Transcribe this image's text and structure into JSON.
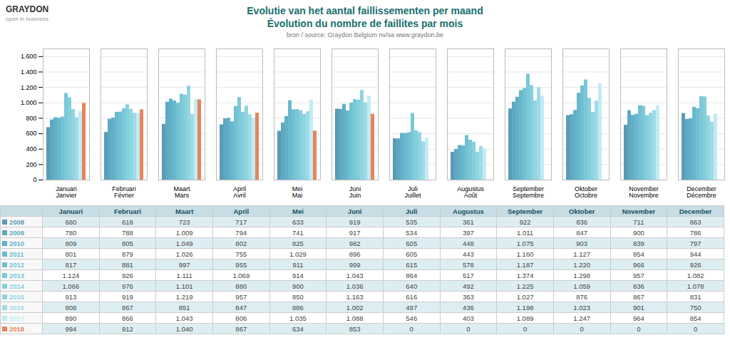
{
  "chart_data": {
    "type": "bar",
    "title": "Evolutie van het aantal faillissementen per maand\nÉvolution du nombre de faillites par mois",
    "subtitle": "bron / source: Graydon Belgium nv/sa   www.graydon.be",
    "annotations": [
      "GRAYDON",
      "open in business"
    ],
    "categories": [
      "Januari\nJanvier",
      "Februari\nFévrier",
      "Maart\nMars",
      "April\nAvril",
      "Mei\nMai",
      "Juni\nJuin",
      "Juli\nJuillet",
      "Augustus\nAoût",
      "September\nSeptembre",
      "Oktober\nOctobre",
      "November\nNovembre",
      "December\nDécembre"
    ],
    "series": [
      {
        "name": "2008",
        "color": "#5b9bb5",
        "values": [
          680,
          618,
          723,
          717,
          633,
          919,
          535,
          361,
          922,
          836,
          711,
          863
        ],
        "value_labels": [
          "680",
          "618",
          "723",
          "717",
          "633",
          "919",
          "535",
          "361",
          "922",
          "836",
          "711",
          "863"
        ]
      },
      {
        "name": "2009",
        "color": "#5ea8c0",
        "values": [
          780,
          788,
          1009,
          794,
          741,
          917,
          534,
          397,
          1011,
          847,
          900,
          786
        ],
        "value_labels": [
          "780",
          "788",
          "1.009",
          "794",
          "741",
          "917",
          "534",
          "397",
          "1.011",
          "847",
          "900",
          "786"
        ]
      },
      {
        "name": "2010",
        "color": "#62b0c8",
        "values": [
          809,
          805,
          1049,
          802,
          825,
          982,
          605,
          448,
          1075,
          903,
          839,
          797
        ],
        "value_labels": [
          "809",
          "805",
          "1.049",
          "802",
          "825",
          "982",
          "605",
          "448",
          "1.075",
          "903",
          "839",
          "797"
        ]
      },
      {
        "name": "2011",
        "color": "#68b8ce",
        "values": [
          801,
          879,
          1026,
          755,
          1029,
          896,
          605,
          443,
          1160,
          1127,
          854,
          944
        ],
        "value_labels": [
          "801",
          "879",
          "1.026",
          "755",
          "1.029",
          "896",
          "605",
          "443",
          "1.160",
          "1.127",
          "854",
          "944"
        ]
      },
      {
        "name": "2012",
        "color": "#72c0d2",
        "values": [
          817,
          881,
          997,
          955,
          911,
          999,
          615,
          578,
          1187,
          1220,
          966,
          926
        ],
        "value_labels": [
          "817",
          "881",
          "997",
          "955",
          "911",
          "999",
          "615",
          "578",
          "1.187",
          "1.220",
          "966",
          "926"
        ]
      },
      {
        "name": "2013",
        "color": "#7ac8d8",
        "values": [
          1124,
          926,
          1111,
          1069,
          914,
          1043,
          864,
          517,
          1374,
          1298,
          957,
          1082
        ],
        "value_labels": [
          "1.124",
          "926",
          "1.111",
          "1.069",
          "914",
          "1.043",
          "864",
          "517",
          "1.374",
          "1.298",
          "957",
          "1.082"
        ]
      },
      {
        "name": "2014",
        "color": "#84cfdc",
        "values": [
          1066,
          976,
          1101,
          880,
          900,
          1036,
          640,
          492,
          1225,
          1059,
          836,
          1078
        ],
        "value_labels": [
          "1.066",
          "976",
          "1.101",
          "880",
          "900",
          "1.036",
          "640",
          "492",
          "1.225",
          "1.059",
          "836",
          "1.078"
        ]
      },
      {
        "name": "2015",
        "color": "#90d5e0",
        "values": [
          913,
          919,
          1219,
          957,
          850,
          1163,
          616,
          363,
          1027,
          876,
          867,
          831
        ],
        "value_labels": [
          "913",
          "919",
          "1.219",
          "957",
          "850",
          "1.163",
          "616",
          "363",
          "1.027",
          "876",
          "867",
          "831"
        ]
      },
      {
        "name": "2016",
        "color": "#9edbe6",
        "values": [
          808,
          867,
          851,
          847,
          886,
          1002,
          497,
          436,
          1198,
          1023,
          901,
          750
        ],
        "value_labels": [
          "808",
          "867",
          "851",
          "847",
          "886",
          "1.002",
          "497",
          "436",
          "1.198",
          "1.023",
          "901",
          "750"
        ]
      },
      {
        "name": "2017",
        "color": "#c0ecf4",
        "values": [
          890,
          866,
          1043,
          806,
          1035,
          1088,
          546,
          403,
          1089,
          1247,
          964,
          854
        ],
        "value_labels": [
          "890",
          "866",
          "1.043",
          "806",
          "1.035",
          "1.088",
          "546",
          "403",
          "1.089",
          "1.247",
          "964",
          "854"
        ]
      },
      {
        "name": "2018",
        "color": "#e8835a",
        "values": [
          994,
          912,
          1040,
          867,
          634,
          853,
          0,
          0,
          0,
          0,
          0,
          0
        ],
        "value_labels": [
          "994",
          "912",
          "1.040",
          "867",
          "634",
          "853",
          "0",
          "0",
          "0",
          "0",
          "0",
          "0"
        ]
      }
    ],
    "ylim": [
      0,
      1700
    ],
    "yticks": [
      0,
      200,
      400,
      600,
      800,
      {
        "value": 1000,
        "label": "1.000"
      },
      {
        "value": 1200,
        "label": "1.200"
      },
      {
        "value": 1400,
        "label": "1.400"
      },
      {
        "value": 1600,
        "label": "1.600"
      }
    ],
    "grid": true
  }
}
